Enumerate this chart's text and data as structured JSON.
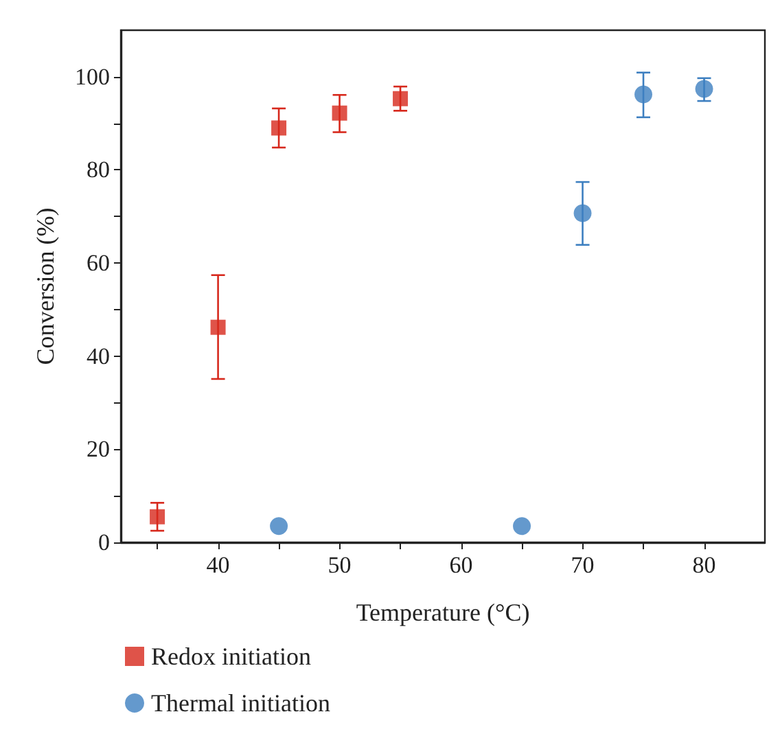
{
  "chart_data": {
    "type": "scatter",
    "xlabel": "Temperature (°C)",
    "ylabel": "Conversion (%)",
    "xlim": [
      32,
      85
    ],
    "ylim": [
      0,
      110
    ],
    "xticks": [
      {
        "value": 35,
        "label": null
      },
      40,
      {
        "value": 45,
        "label": null
      },
      50,
      {
        "value": 55,
        "label": null
      },
      60,
      {
        "value": 65,
        "label": null
      },
      70,
      {
        "value": 75,
        "label": null
      },
      80
    ],
    "yticks": [
      0,
      {
        "value": 10,
        "label": null
      },
      20,
      {
        "value": 30,
        "label": null
      },
      40,
      {
        "value": 50,
        "label": null
      },
      60,
      {
        "value": 70,
        "label": null
      },
      80,
      {
        "value": 90,
        "label": null
      },
      100
    ],
    "grid": false,
    "legend": "bottom",
    "series": [
      {
        "name": "Redox initiation",
        "color": "#d7281c",
        "marker": "square",
        "x": [
          35,
          40,
          45,
          50,
          55
        ],
        "values": [
          5.5,
          46.2,
          89.0,
          92.2,
          95.3
        ],
        "errors": [
          [
            2.5,
            8.5
          ],
          [
            35.1,
            57.4
          ],
          [
            84.8,
            93.2
          ],
          [
            88.1,
            96.1
          ],
          [
            92.7,
            97.9
          ]
        ]
      },
      {
        "name": "Thermal initiation",
        "color": "#3d7fc0",
        "marker": "circle",
        "x": [
          45,
          65,
          70,
          75,
          80
        ],
        "values": [
          3.5,
          3.5,
          70.7,
          96.2,
          97.4
        ],
        "errors": [
          null,
          null,
          [
            63.9,
            77.4
          ],
          [
            91.3,
            100.9
          ],
          [
            94.8,
            99.7
          ]
        ]
      }
    ]
  }
}
